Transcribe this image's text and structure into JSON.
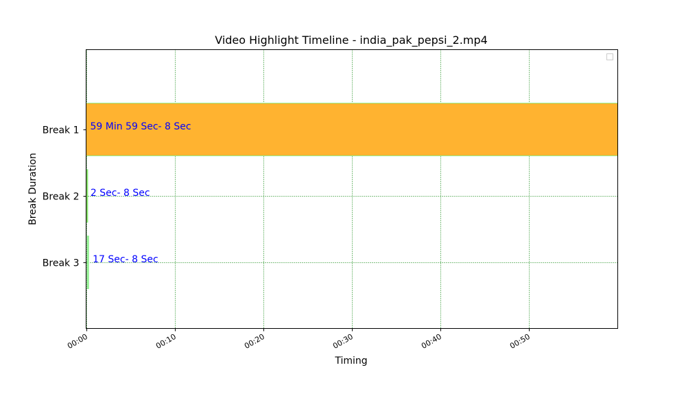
{
  "chart_data": {
    "type": "timeline",
    "title": "Video Highlight Timeline - india_pak_pepsi_2.mp4",
    "xlabel": "Timing",
    "ylabel": "Break Duration",
    "x_unit": "minutes",
    "xlim": [
      0,
      60
    ],
    "x_ticks": [
      {
        "value": 0,
        "label": "00:00"
      },
      {
        "value": 10,
        "label": "00:10"
      },
      {
        "value": 20,
        "label": "00:20"
      },
      {
        "value": 30,
        "label": "00:30"
      },
      {
        "value": 40,
        "label": "00:40"
      },
      {
        "value": 50,
        "label": "00:50"
      }
    ],
    "categories": [
      "Break 1",
      "Break 2",
      "Break 3"
    ],
    "bars": [
      {
        "category": "Break 1",
        "start": 0,
        "end": 60,
        "label": "59 Min 59 Sec- 8 Sec",
        "color": "#ffb330",
        "edge_color": "#90ee90"
      },
      {
        "category": "Break 2",
        "start": 0.033,
        "end": 0.133,
        "label": "2 Sec- 8 Sec",
        "color": "#7ccd3c",
        "edge_color": "#90ee90"
      },
      {
        "category": "Break 3",
        "start": 0.283,
        "end": 0.133,
        "label": "17 Sec- 8 Sec",
        "color": "#90ee90",
        "edge_color": "#90ee90"
      }
    ],
    "grid": true,
    "grid_color": "#008000",
    "label_color": "#0000ff",
    "legend": "top-right",
    "legend_entries": []
  }
}
